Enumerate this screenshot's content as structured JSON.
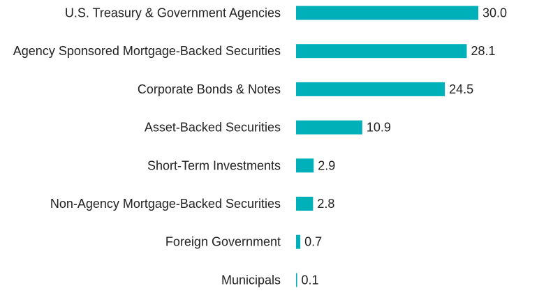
{
  "chart_data": {
    "type": "bar",
    "orientation": "horizontal",
    "categories": [
      "U.S. Treasury & Government Agencies",
      "Agency Sponsored Mortgage-Backed Securities",
      "Corporate Bonds & Notes",
      "Asset-Backed Securities",
      "Short-Term Investments",
      "Non-Agency Mortgage-Backed Securities",
      "Foreign Government",
      "Municipals"
    ],
    "values": [
      30.0,
      28.1,
      24.5,
      10.9,
      2.9,
      2.8,
      0.7,
      0.1
    ],
    "value_labels": [
      "30.0",
      "28.1",
      "24.5",
      "10.9",
      "2.9",
      "2.8",
      "0.7",
      "0.1"
    ],
    "title": "",
    "xlabel": "",
    "ylabel": "",
    "xlim": [
      0,
      30
    ],
    "grid": false,
    "legend": "none",
    "bar_color": "#00B0B9"
  }
}
